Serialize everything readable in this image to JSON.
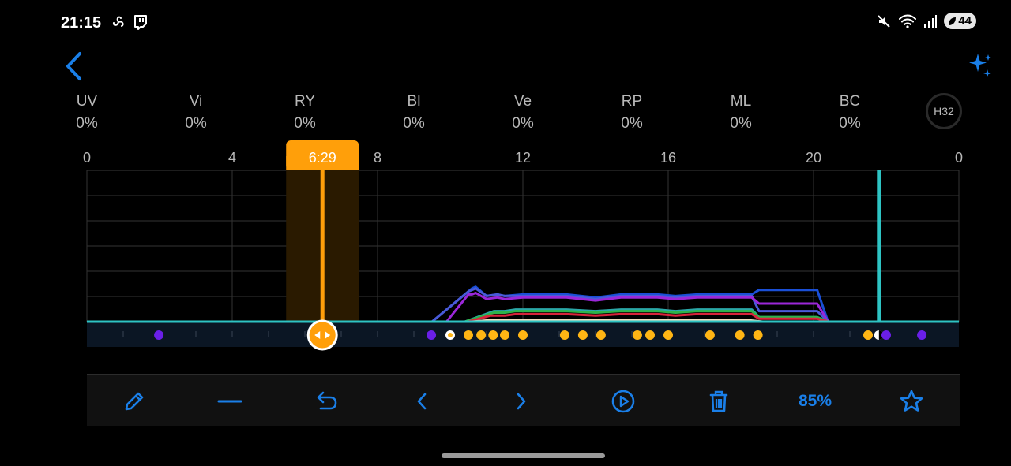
{
  "status_bar": {
    "time": "21:15",
    "battery": "44",
    "icons_left": [
      "fan-icon",
      "twitch-icon"
    ],
    "icons_right": [
      "mute-icon",
      "wifi-icon",
      "signal-icon",
      "battery-icon"
    ]
  },
  "header": {
    "back_icon": "chevron-left-icon",
    "ai_icon": "sparkle-icon"
  },
  "channels": [
    {
      "label": "UV",
      "value": "0%"
    },
    {
      "label": "Vi",
      "value": "0%"
    },
    {
      "label": "RY",
      "value": "0%"
    },
    {
      "label": "Bl",
      "value": "0%"
    },
    {
      "label": "Ve",
      "value": "0%"
    },
    {
      "label": "RP",
      "value": "0%"
    },
    {
      "label": "ML",
      "value": "0%"
    },
    {
      "label": "BC",
      "value": "0%"
    }
  ],
  "device_badge": "H32",
  "timeline": {
    "current_time": "6:29",
    "current_hour": 6.483,
    "now_hour": 21.8,
    "accent": "#ff9f0a",
    "now_color": "#2ec4c4"
  },
  "chart_data": {
    "type": "line",
    "x_ticks": [
      "0",
      "4",
      "8",
      "12",
      "16",
      "20",
      "0"
    ],
    "x_tick_positions": [
      0,
      4,
      8,
      12,
      16,
      20,
      24
    ],
    "xlim": [
      0,
      24
    ],
    "ylim": [
      0,
      100
    ],
    "grid": true,
    "series": [
      {
        "color": "#1a4fd6",
        "points": [
          [
            9.5,
            0
          ],
          [
            10.5,
            20
          ],
          [
            10.6,
            22
          ],
          [
            10.7,
            23
          ],
          [
            11.0,
            17
          ],
          [
            11.3,
            18
          ],
          [
            11.5,
            17
          ],
          [
            12,
            18
          ],
          [
            13.2,
            18
          ],
          [
            14,
            16
          ],
          [
            14.7,
            18
          ],
          [
            15.7,
            18
          ],
          [
            16.2,
            17
          ],
          [
            16.8,
            18
          ],
          [
            18.3,
            18
          ],
          [
            18.5,
            21
          ],
          [
            20.1,
            21
          ],
          [
            20.4,
            0
          ]
        ]
      },
      {
        "color": "#4a5ad8",
        "points": [
          [
            9.5,
            0
          ],
          [
            10.5,
            20
          ],
          [
            10.6,
            21
          ],
          [
            10.7,
            22
          ],
          [
            11.0,
            17
          ],
          [
            11.3,
            18
          ],
          [
            11.5,
            17
          ],
          [
            12,
            17
          ],
          [
            13.2,
            17
          ],
          [
            14,
            15
          ],
          [
            14.7,
            17
          ],
          [
            15.7,
            17
          ],
          [
            16.2,
            16
          ],
          [
            16.8,
            17
          ],
          [
            18.3,
            17
          ],
          [
            18.5,
            7
          ],
          [
            20.1,
            7
          ],
          [
            20.4,
            0
          ]
        ]
      },
      {
        "color": "#9b27d9",
        "points": [
          [
            9.9,
            0
          ],
          [
            10.5,
            18
          ],
          [
            10.6,
            18
          ],
          [
            10.7,
            19
          ],
          [
            11.0,
            15
          ],
          [
            11.3,
            16
          ],
          [
            11.5,
            15
          ],
          [
            12,
            16
          ],
          [
            13.2,
            16
          ],
          [
            14,
            14
          ],
          [
            14.7,
            16
          ],
          [
            15.7,
            16
          ],
          [
            16.2,
            15
          ],
          [
            16.8,
            16
          ],
          [
            18.3,
            16
          ],
          [
            18.5,
            12
          ],
          [
            20.1,
            12
          ],
          [
            20.4,
            0
          ]
        ]
      },
      {
        "color": "#2aa8a8",
        "points": [
          [
            10.4,
            0
          ],
          [
            11.2,
            7
          ],
          [
            11.5,
            7
          ],
          [
            11.8,
            8
          ],
          [
            12,
            8
          ],
          [
            13.2,
            8
          ],
          [
            14,
            7
          ],
          [
            14.7,
            8
          ],
          [
            15.7,
            8
          ],
          [
            16.2,
            7
          ],
          [
            16.8,
            8
          ],
          [
            18.3,
            8
          ],
          [
            18.5,
            3
          ],
          [
            20.1,
            3
          ],
          [
            20.4,
            0
          ]
        ]
      },
      {
        "color": "#2db34a",
        "points": [
          [
            10.4,
            0
          ],
          [
            11.2,
            6
          ],
          [
            11.5,
            6
          ],
          [
            11.8,
            7
          ],
          [
            12,
            7
          ],
          [
            13.2,
            7
          ],
          [
            14,
            6
          ],
          [
            14.7,
            7
          ],
          [
            15.7,
            7
          ],
          [
            16.2,
            6
          ],
          [
            16.8,
            7
          ],
          [
            18.3,
            7
          ],
          [
            18.5,
            3
          ],
          [
            20.1,
            3
          ],
          [
            20.4,
            0
          ]
        ]
      },
      {
        "color": "#d9243b",
        "points": [
          [
            10.5,
            0
          ],
          [
            11.1,
            4
          ],
          [
            11.5,
            4
          ],
          [
            11.8,
            5
          ],
          [
            12,
            5
          ],
          [
            13.2,
            5
          ],
          [
            14,
            4
          ],
          [
            14.7,
            5
          ],
          [
            15.7,
            5
          ],
          [
            16.2,
            4
          ],
          [
            16.8,
            5
          ],
          [
            18.3,
            5
          ],
          [
            18.5,
            2
          ],
          [
            20.1,
            2
          ],
          [
            20.4,
            0
          ]
        ]
      },
      {
        "color": "#efe0c0",
        "points": [
          [
            10.6,
            0
          ],
          [
            11.1,
            1
          ],
          [
            18.2,
            1
          ],
          [
            18.6,
            0
          ]
        ]
      }
    ],
    "schedule_points": [
      {
        "hour": 1.98,
        "kind": "off"
      },
      {
        "hour": 9.48,
        "kind": "off"
      },
      {
        "hour": 10.0,
        "kind": "active"
      },
      {
        "hour": 10.5,
        "kind": "on"
      },
      {
        "hour": 10.85,
        "kind": "on"
      },
      {
        "hour": 11.18,
        "kind": "on"
      },
      {
        "hour": 11.5,
        "kind": "on"
      },
      {
        "hour": 12.0,
        "kind": "on"
      },
      {
        "hour": 13.15,
        "kind": "on"
      },
      {
        "hour": 13.65,
        "kind": "on"
      },
      {
        "hour": 14.15,
        "kind": "on"
      },
      {
        "hour": 15.15,
        "kind": "on"
      },
      {
        "hour": 15.5,
        "kind": "on"
      },
      {
        "hour": 16.0,
        "kind": "on"
      },
      {
        "hour": 17.15,
        "kind": "on"
      },
      {
        "hour": 17.97,
        "kind": "on"
      },
      {
        "hour": 18.47,
        "kind": "on"
      },
      {
        "hour": 21.5,
        "kind": "on"
      },
      {
        "hour": 21.8,
        "kind": "now"
      },
      {
        "hour": 22.0,
        "kind": "off"
      },
      {
        "hour": 22.98,
        "kind": "off"
      }
    ],
    "colors": {
      "on": "#ffb514",
      "off": "#6a1fe8",
      "active": "#ffffff",
      "baseline": "#2ec4c4"
    }
  },
  "toolbar": {
    "edit_icon": "pencil-icon",
    "remove_icon": "minus-icon",
    "undo_icon": "undo-icon",
    "prev_icon": "chevron-left-icon",
    "next_icon": "chevron-right-icon",
    "preview_icon": "play-circle-icon",
    "delete_icon": "trash-icon",
    "zoom": "85%",
    "favorite_icon": "star-icon",
    "accent": "#1a7fe8"
  }
}
